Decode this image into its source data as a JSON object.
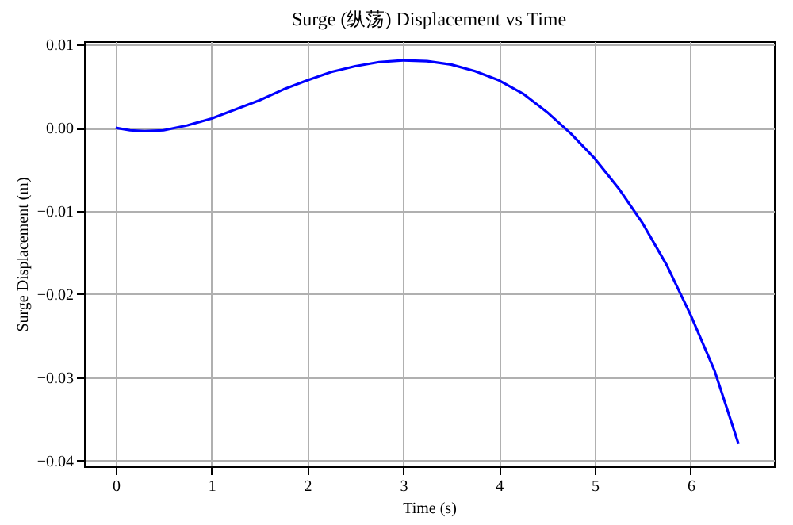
{
  "chart_data": {
    "type": "line",
    "title": "Surge (纵荡) Displacement vs Time",
    "xlabel": "Time (s)",
    "ylabel": "Surge Displacement (m)",
    "series": [
      {
        "color": "#0000ff",
        "x": [
          0,
          0.15,
          0.3,
          0.5,
          0.75,
          1,
          1.25,
          1.5,
          1.75,
          2,
          2.25,
          2.5,
          2.75,
          3,
          3.25,
          3.5,
          3.75,
          4,
          4.25,
          4.5,
          4.75,
          5,
          5.25,
          5.5,
          5.75,
          6,
          6.25,
          6.5
        ],
        "values": [
          0,
          -0.0003,
          -0.0004,
          -0.0003,
          0.0003,
          0.0011,
          0.0022,
          0.0033,
          0.0046,
          0.0057,
          0.0067,
          0.0074,
          0.0079,
          0.0081,
          0.008,
          0.0076,
          0.0068,
          0.0057,
          0.0041,
          0.0019,
          -0.0007,
          -0.0037,
          -0.0073,
          -0.0115,
          -0.0165,
          -0.0225,
          -0.0292,
          -0.038
        ]
      }
    ],
    "xlim": [
      -0.33,
      6.87
    ],
    "ylim": [
      -0.0407,
      0.0104
    ],
    "xticks": [
      0,
      1,
      2,
      3,
      4,
      5,
      6
    ],
    "yticks": [
      {
        "value": -0.04,
        "label": "−0.04"
      },
      {
        "value": -0.03,
        "label": "−0.03"
      },
      {
        "value": -0.02,
        "label": "−0.02"
      },
      {
        "value": -0.01,
        "label": "−0.01"
      },
      {
        "value": 0,
        "label": "0.00"
      },
      {
        "value": 0.01,
        "label": "0.01"
      }
    ],
    "grid": true,
    "line_style": "solid",
    "marker": "none"
  }
}
